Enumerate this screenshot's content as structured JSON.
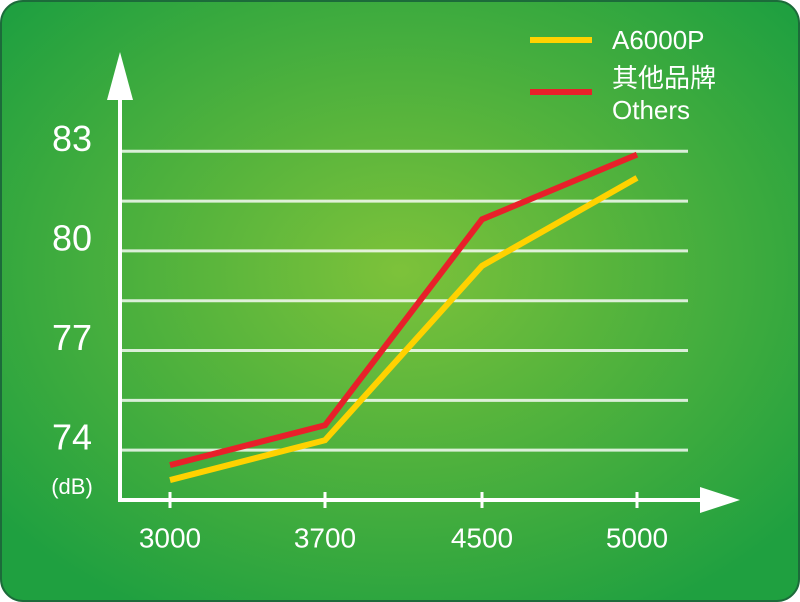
{
  "chart_data": {
    "type": "line",
    "categories": [
      "3000",
      "3700",
      "4500",
      "5000"
    ],
    "y_unit": "(dB)",
    "ylim": [
      72.5,
      85.9
    ],
    "yticks": [
      74,
      77,
      80,
      83
    ],
    "minor_yticks": [
      75.5,
      78.5,
      81.5
    ],
    "grid": true,
    "series": [
      {
        "name": "A6000P",
        "color": "#ffd200",
        "values": [
          73.1,
          74.3,
          79.55,
          82.2
        ]
      },
      {
        "name": "其他品牌",
        "name_en": "Others",
        "color": "#e8202a",
        "values": [
          73.55,
          74.75,
          80.95,
          82.9
        ]
      }
    ]
  }
}
